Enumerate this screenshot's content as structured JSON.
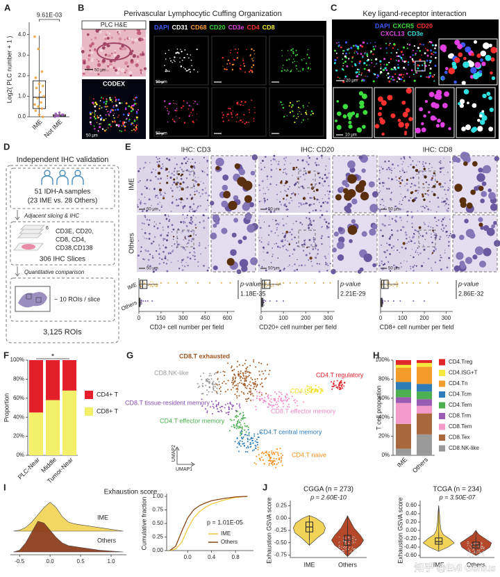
{
  "B": {
    "letter": "B",
    "title": "Perivascular Lymphocytic Cuffing Organization",
    "he_label": "PLC H&E",
    "codex_label": "CODEX",
    "scale": "50 μm",
    "markers": [
      {
        "name": "DAPI",
        "color": "#3b5bff"
      },
      {
        "name": "CD31",
        "color": "#ffffff"
      },
      {
        "name": "CD68",
        "color": "#ff9a2e"
      },
      {
        "name": "CD20",
        "color": "#3cdc3c"
      },
      {
        "name": "CD3e",
        "color": "#e040e0"
      },
      {
        "name": "CD4",
        "color": "#ff3030"
      },
      {
        "name": "CD8",
        "color": "#f5f030"
      }
    ]
  },
  "C": {
    "letter": "C",
    "title": "Key ligand-receptor interaction",
    "scale_large": "20 μm",
    "scale_small": "10 μm",
    "markers": [
      {
        "name": "DAPI",
        "color": "#3b5bff"
      },
      {
        "name": "CXCR5",
        "color": "#3cdc3c"
      },
      {
        "name": "CD20",
        "color": "#ff3030"
      },
      {
        "name": "CXCL13",
        "color": "#e040e0"
      },
      {
        "name": "CD3e",
        "color": "#30e0e0"
      }
    ]
  },
  "D": {
    "letter": "D",
    "title": "Independent IHC validation",
    "samples": "51 IDH-A samples",
    "samples_sub": "(23 IME vs. 28 Others)",
    "step1": "Adjacent slicing & IHC",
    "slice_count": "6",
    "markers_lines": [
      "CD3E, CD20,",
      "CD8, CD4,",
      "CD38,CD138"
    ],
    "slices": "306 IHC Slices",
    "step2": "Quantitative comparison",
    "rois": "~ 10 ROIs / slice",
    "total": "3,125 ROIs"
  },
  "E": {
    "letter": "E",
    "titles": [
      "IHC: CD3",
      "IHC: CD20",
      "IHC: CD8"
    ],
    "rows": [
      "IME",
      "Others"
    ],
    "scale": "50 μm"
  },
  "G": {
    "letter": "G",
    "axes": [
      "UMAP1",
      "UMAP2"
    ],
    "clusters": [
      {
        "label": "CD8.T exhausted",
        "color": "#a0541e"
      },
      {
        "label": "CD8.NK-like",
        "color": "#9a9a9a"
      },
      {
        "label": "CD4.T regulatory",
        "color": "#e0202a"
      },
      {
        "label": "CD4.ISG+T",
        "color": "#f0e020"
      },
      {
        "label": "CD8.T tissue-resident memory",
        "color": "#8a4fb0"
      },
      {
        "label": "CD8.T effector memory",
        "color": "#f08cc8"
      },
      {
        "label": "CD4.T effector memory",
        "color": "#4caf50"
      },
      {
        "label": "CD4.T central memory",
        "color": "#2f7db8"
      },
      {
        "label": "CD4.T naive",
        "color": "#f39020"
      }
    ]
  },
  "watermark": "知乎 @Evil Genius",
  "chart_data": [
    {
      "letter": "A",
      "type": "box",
      "ylabel": "Log2( PLC number + 1 )",
      "categories": [
        "IME",
        "Not IME"
      ],
      "annotation": "9.61E-03",
      "colors": [
        "#f0a030",
        "#9b59b6"
      ],
      "ylim": [
        0,
        4.6
      ],
      "yticks": [
        {
          "value": 0,
          "label": "0.0"
        },
        {
          "value": 1,
          "label": "1.0"
        },
        {
          "value": 2,
          "label": "2.0"
        },
        {
          "value": 3,
          "label": "3.0"
        },
        {
          "value": 4,
          "label": "4.0"
        }
      ],
      "boxes": [
        {
          "min": 0,
          "q1": 0.4,
          "median": 0.95,
          "q3": 1.75,
          "max": 3.95
        },
        {
          "min": 0,
          "q1": 0.02,
          "median": 0.05,
          "q3": 0.1,
          "max": 0.2
        }
      ],
      "points": [
        [
          3.9,
          3.3,
          2.2,
          1.9,
          1.6,
          1.5,
          1.4,
          1.2,
          1.0,
          0.9,
          0.7,
          0.6,
          0.5,
          0.4,
          0.3,
          0.1,
          0
        ],
        [
          0,
          0.05,
          0.1,
          0.15,
          0.2,
          0.1,
          0.05
        ]
      ]
    },
    {
      "type": "hbox",
      "categories": [
        "IME",
        "Others"
      ],
      "xlabel": "CD3+ cell number per field",
      "pvalue_label": "p-value",
      "pvalue": "1.18E-35",
      "colors": [
        "#d9a030",
        "#7a5aa0"
      ],
      "xlim": [
        0,
        650
      ],
      "xticks": [
        0,
        150,
        300,
        450,
        600
      ],
      "boxes": [
        {
          "min": 0,
          "q1": 8,
          "median": 25,
          "q3": 55,
          "max": 130
        },
        {
          "min": 0,
          "q1": 1,
          "median": 3,
          "q3": 8,
          "max": 20
        }
      ],
      "points": [
        [
          150,
          200,
          260,
          320,
          400,
          480,
          560,
          620
        ],
        [
          30,
          45,
          60,
          90
        ]
      ]
    },
    {
      "type": "hbox",
      "xlabel": "CD20+ cell number per field",
      "pvalue_label": "p-value",
      "pvalue": "2.21E-29",
      "colors": [
        "#d9a030",
        "#7a5aa0"
      ],
      "xlim": [
        0,
        330
      ],
      "xticks": [
        0,
        100,
        200,
        300
      ],
      "boxes": [
        {
          "min": 0,
          "q1": 5,
          "median": 15,
          "q3": 40,
          "max": 90
        },
        {
          "min": 0,
          "q1": 1,
          "median": 3,
          "q3": 8,
          "max": 15
        }
      ],
      "points": [
        [
          100,
          130,
          160,
          200,
          240,
          280,
          310
        ],
        [
          20,
          40,
          70,
          100
        ]
      ]
    },
    {
      "type": "hbox",
      "xlabel": "CD8+ cell number per field",
      "pvalue_label": "p-value",
      "pvalue": "2.86E-32",
      "colors": [
        "#d9a030",
        "#7a5aa0"
      ],
      "xlim": [
        0,
        330
      ],
      "xticks": [
        0,
        100,
        200,
        300
      ],
      "boxes": [
        {
          "min": 0,
          "q1": 5,
          "median": 15,
          "q3": 35,
          "max": 80
        },
        {
          "min": 0,
          "q1": 1,
          "median": 3,
          "q3": 7,
          "max": 12
        }
      ],
      "points": [
        [
          100,
          120,
          150,
          180,
          220,
          260
        ],
        [
          20,
          35,
          60,
          90,
          150,
          200
        ]
      ]
    },
    {
      "letter": "F",
      "type": "stacked_bar",
      "ylabel": "Proportion",
      "annotation": "*",
      "categories": [
        "PLC-Near",
        "Middle",
        "Tumor-Near"
      ],
      "series": [
        {
          "name": "CD8+ T",
          "color": "#f5f06a",
          "values": [
            45,
            58,
            68
          ]
        },
        {
          "name": "CD4+ T",
          "color": "#e3202a",
          "values": [
            55,
            42,
            32
          ]
        }
      ],
      "ylim": [
        0,
        100
      ],
      "yticks": [
        {
          "value": 0,
          "label": "0%"
        },
        {
          "value": 20,
          "label": "20%"
        },
        {
          "value": 40,
          "label": "40%"
        },
        {
          "value": 60,
          "label": "60%"
        },
        {
          "value": 80,
          "label": "80%"
        },
        {
          "value": 100,
          "label": "100%"
        }
      ]
    },
    {
      "letter": "H",
      "type": "stacked_bar",
      "ylabel": "T cell proportion",
      "categories": [
        "IME",
        "Others"
      ],
      "series": [
        {
          "name": "CD8.NK-like",
          "color": "#9a9a9a",
          "values": [
            7,
            22
          ]
        },
        {
          "name": "CD8.Tex",
          "color": "#a8683c",
          "values": [
            26,
            22
          ]
        },
        {
          "name": "CD8.Tem",
          "color": "#f29ac9",
          "values": [
            22,
            8
          ]
        },
        {
          "name": "CD8.Trm",
          "color": "#9a5bb5",
          "values": [
            6,
            7
          ]
        },
        {
          "name": "CD4.Tem",
          "color": "#4caf50",
          "values": [
            8,
            8
          ]
        },
        {
          "name": "CD4.Tcm",
          "color": "#2f7db8",
          "values": [
            8,
            8
          ]
        },
        {
          "name": "CD4.Tn",
          "color": "#f39c2a",
          "values": [
            15,
            18
          ]
        },
        {
          "name": "CD4.ISG+T",
          "color": "#f5e83a",
          "values": [
            3,
            4
          ]
        },
        {
          "name": "CD4.Treg",
          "color": "#e0272a",
          "values": [
            5,
            3
          ]
        }
      ],
      "ylim": [
        0,
        100
      ],
      "yticks": [
        {
          "value": 0,
          "label": "0%"
        },
        {
          "value": 20,
          "label": "20%"
        },
        {
          "value": 40,
          "label": "40%"
        },
        {
          "value": 60,
          "label": "60%"
        },
        {
          "value": 80,
          "label": "80%"
        },
        {
          "value": 100,
          "label": "100%"
        }
      ]
    },
    {
      "letter": "I",
      "type": "density",
      "title": "Exhaustion score",
      "x": [
        -0.6,
        -0.5,
        -0.4,
        -0.3,
        -0.2,
        -0.1,
        0,
        0.1,
        0.2,
        0.3,
        0.4,
        0.5,
        0.6,
        0.8,
        1.0,
        1.2
      ],
      "series": [
        {
          "name": "IME",
          "color": "#f2d456",
          "values": [
            0,
            0.05,
            0.2,
            0.5,
            0.9,
            1.3,
            1.6,
            1.3,
            0.8,
            0.5,
            0.4,
            0.35,
            0.3,
            0.2,
            0.1,
            0
          ]
        },
        {
          "name": "Others",
          "color": "#8b3a1a",
          "values": [
            0,
            0.1,
            0.5,
            1.1,
            1.7,
            1.6,
            1.2,
            0.8,
            0.5,
            0.35,
            0.3,
            0.25,
            0.2,
            0.1,
            0.05,
            0
          ]
        }
      ],
      "xlim": [
        -0.65,
        1.25
      ],
      "xticks": [
        -0.5,
        {
          "value": 0,
          "label": "0.0"
        },
        0.5,
        {
          "value": 1,
          "label": "1.0"
        }
      ]
    },
    {
      "type": "line",
      "ylabel": "Cumulative fraction",
      "annotation": "p = 1.01E-05",
      "x": [
        -0.3,
        -0.2,
        -0.1,
        0,
        0.1,
        0.2,
        0.3,
        0.4,
        0.6,
        0.8,
        1.0
      ],
      "series": [
        {
          "name": "IME",
          "color": "#f0c840",
          "values": [
            0,
            0.03,
            0.15,
            0.4,
            0.6,
            0.72,
            0.8,
            0.86,
            0.93,
            0.98,
            1
          ]
        },
        {
          "name": "Others",
          "color": "#8b4513",
          "values": [
            0,
            0.08,
            0.35,
            0.6,
            0.75,
            0.83,
            0.88,
            0.92,
            0.96,
            0.99,
            1
          ]
        }
      ],
      "xlim": [
        -0.35,
        1.1
      ],
      "xticks": [
        {
          "value": 0,
          "label": "0.0"
        },
        0.4,
        0.8
      ],
      "ylim": [
        0,
        1
      ],
      "yticks": [
        {
          "value": 0,
          "label": "0.00"
        },
        {
          "value": 0.25,
          "label": "0.25"
        },
        {
          "value": 0.5,
          "label": "0.50"
        },
        {
          "value": 0.75,
          "label": "0.75"
        },
        {
          "value": 1,
          "label": "1.00"
        }
      ]
    },
    {
      "letter": "J",
      "type": "violin",
      "title": "CGGA (n = 273)",
      "annotation": "p = 2.60E-10",
      "ylabel": "Exhaustion GSVA score",
      "categories": [
        "IME",
        "Others"
      ],
      "colors": [
        "#f2d35a",
        "#b5482a"
      ],
      "violins": [
        {
          "y": [
            -0.55,
            -0.4,
            -0.3,
            -0.2,
            -0.1,
            0,
            0.05
          ],
          "width": [
            0,
            0.5,
            0.9,
            1,
            0.85,
            0.4,
            0
          ]
        },
        {
          "y": [
            -0.78,
            -0.65,
            -0.55,
            -0.45,
            -0.35,
            -0.2,
            -0.05,
            0.05
          ],
          "width": [
            0,
            0.4,
            0.8,
            1,
            0.8,
            0.4,
            0.15,
            0
          ]
        }
      ],
      "boxes": [
        {
          "min": -0.45,
          "q1": -0.28,
          "median": -0.18,
          "q3": -0.08,
          "max": 0.0
        },
        {
          "min": -0.72,
          "q1": -0.55,
          "median": -0.45,
          "q3": -0.35,
          "max": -0.15
        }
      ],
      "ylim": [
        -0.8,
        0.3
      ],
      "yticks": [
        {
          "value": -0.75,
          "label": "-0.75"
        },
        {
          "value": -0.5,
          "label": "-0.50"
        },
        {
          "value": -0.25,
          "label": "-0.25"
        },
        {
          "value": 0,
          "label": "0.00"
        },
        {
          "value": 0.25,
          "label": "0.25"
        }
      ]
    },
    {
      "type": "violin",
      "title": "TCGA (n = 234)",
      "annotation": "p = 3.50E-07",
      "ylabel": "Exhaustion GSVA score",
      "categories": [
        "IME",
        "Others"
      ],
      "colors": [
        "#f2d35a",
        "#b5482a"
      ],
      "violins": [
        {
          "y": [
            -0.5,
            -0.4,
            -0.3,
            -0.2,
            -0.1,
            0,
            0.2,
            0.4,
            0.6
          ],
          "width": [
            0,
            0.6,
            1,
            0.7,
            0.3,
            0.15,
            0.08,
            0.05,
            0
          ]
        },
        {
          "y": [
            -0.6,
            -0.5,
            -0.4,
            -0.3,
            -0.2,
            -0.1,
            0
          ],
          "width": [
            0,
            0.5,
            0.9,
            1,
            0.6,
            0.2,
            0
          ]
        }
      ],
      "boxes": [
        {
          "min": -0.45,
          "q1": -0.33,
          "median": -0.27,
          "q3": -0.18,
          "max": -0.05
        },
        {
          "min": -0.55,
          "q1": -0.42,
          "median": -0.35,
          "q3": -0.28,
          "max": -0.15
        }
      ],
      "ylim": [
        -0.65,
        0.65
      ],
      "yticks": [
        {
          "value": -0.6,
          "label": "-0.60"
        },
        {
          "value": -0.4,
          "label": "-0.40"
        },
        {
          "value": -0.2,
          "label": "-0.20"
        },
        {
          "value": 0,
          "label": "0.00"
        },
        {
          "value": 0.2,
          "label": "0.20"
        },
        {
          "value": 0.4,
          "label": "0.40"
        },
        {
          "value": 0.6,
          "label": "0.60"
        }
      ]
    }
  ]
}
